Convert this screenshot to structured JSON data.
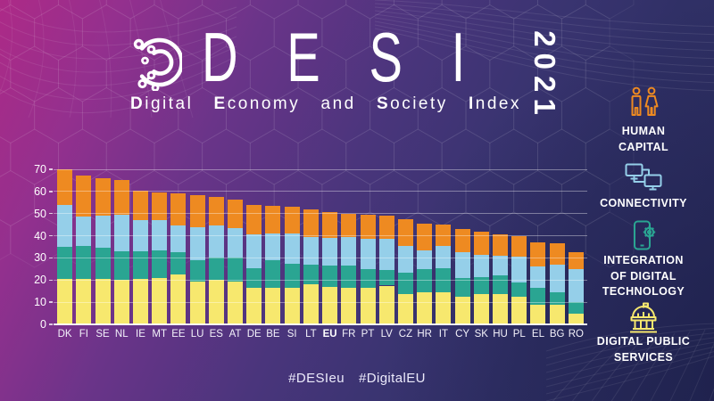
{
  "header": {
    "title": "DESI",
    "year": "2021",
    "subtitle_words": [
      {
        "lead": "D",
        "rest": "igital",
        "bold": true
      },
      {
        "lead": "E",
        "rest": "conomy",
        "bold": true
      },
      {
        "lead": "a",
        "rest": "nd",
        "bold": false
      },
      {
        "lead": "S",
        "rest": "ociety",
        "bold": true
      },
      {
        "lead": "I",
        "rest": "ndex",
        "bold": true
      }
    ],
    "logo": "desi-circuit-logo"
  },
  "legend": {
    "position": "right-sidebar",
    "items": [
      {
        "id": "human-capital",
        "label": "HUMAN\nCAPITAL",
        "icon": "people-icon",
        "color": "#ee8a21"
      },
      {
        "id": "connectivity",
        "label": "CONNECTIVITY",
        "icon": "connected-computers-icon",
        "color": "#95cfe9"
      },
      {
        "id": "integration-of-digital-technology",
        "label": "INTEGRATION\nOF DIGITAL\nTECHNOLOGY",
        "icon": "phone-gear-icon",
        "color": "#2aa592"
      },
      {
        "id": "digital-public-services",
        "label": "DIGITAL PUBLIC\nSERVICES",
        "icon": "government-building-icon",
        "color": "#f7e86e"
      }
    ]
  },
  "chart_data": {
    "type": "bar",
    "stacked": true,
    "stack_order": "bottom-to-top",
    "categories": [
      "DK",
      "FI",
      "SE",
      "NL",
      "IE",
      "MT",
      "EE",
      "LU",
      "ES",
      "AT",
      "DE",
      "BE",
      "SI",
      "LT",
      "EU",
      "FR",
      "PT",
      "LV",
      "CZ",
      "HR",
      "IT",
      "CY",
      "SK",
      "HU",
      "PL",
      "EL",
      "BG",
      "RO"
    ],
    "emphasized_category": "EU",
    "series": [
      {
        "name": "Digital Public Services",
        "color": "#f7e86e",
        "values": [
          20.5,
          20.5,
          20.5,
          20,
          20.5,
          21,
          22.5,
          19.5,
          20,
          19.5,
          16.5,
          16.5,
          16.5,
          18,
          17,
          16.5,
          16.5,
          17.5,
          13.5,
          14.5,
          14.5,
          12.5,
          13.5,
          13.5,
          12.5,
          9,
          9,
          5
        ]
      },
      {
        "name": "Integration of Digital Technology",
        "color": "#2aa592",
        "values": [
          14.5,
          15,
          14,
          13,
          12.5,
          12.5,
          10,
          9.5,
          10,
          10.5,
          9,
          12.5,
          11,
          9,
          9.5,
          10,
          8.5,
          7,
          10,
          10.5,
          11,
          8.5,
          8,
          8.5,
          6.5,
          7.5,
          5.5,
          5
        ]
      },
      {
        "name": "Connectivity",
        "color": "#95cfe9",
        "values": [
          19,
          13,
          14.5,
          16.5,
          14,
          13.5,
          12,
          15,
          14.5,
          13.5,
          15,
          12,
          13.5,
          12.5,
          12.5,
          13,
          13.5,
          14,
          12,
          8.5,
          10,
          11.5,
          10,
          9,
          11.5,
          9.5,
          12.5,
          15
        ]
      },
      {
        "name": "Human Capital",
        "color": "#ee8a21",
        "values": [
          16,
          18.5,
          17,
          15.5,
          13.5,
          12.5,
          14.5,
          14.5,
          13,
          13,
          13.5,
          12.5,
          12,
          12.5,
          11.5,
          10.5,
          11,
          10.5,
          12,
          12,
          9.5,
          10.5,
          10.5,
          9.5,
          9.5,
          11,
          9.5,
          7.5
        ]
      }
    ],
    "totals": [
      70,
      67,
      66,
      65,
      60.5,
      59.5,
      59,
      58.5,
      57.5,
      56.5,
      54,
      53.5,
      53,
      52,
      50.5,
      50,
      49.5,
      49,
      47.5,
      45.5,
      45,
      43,
      42,
      40.5,
      40,
      37,
      36.5,
      32.5
    ],
    "ylim": [
      0,
      70
    ],
    "yticks": [
      0,
      10,
      20,
      30,
      40,
      50,
      60,
      70
    ],
    "grid": true,
    "xlabel": "",
    "ylabel": ""
  },
  "footer": {
    "hashtag1": "#DESIeu",
    "hashtag2": "#DigitalEU"
  },
  "colors": {
    "background_top_left": "#ad2a87",
    "background_mid": "#4a357c",
    "background_bottom_right": "#2b2d5e",
    "text": "#ffffff",
    "gridline": "rgba(255,255,255,0.38)"
  }
}
